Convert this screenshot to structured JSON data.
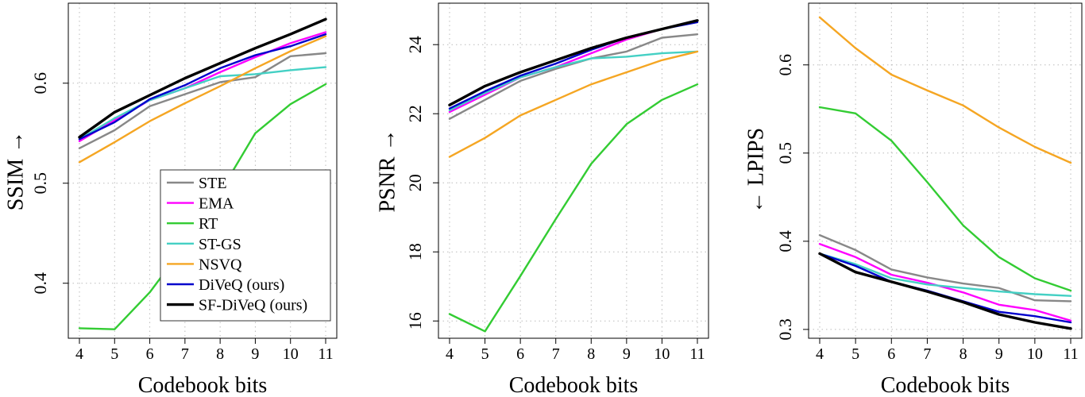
{
  "chart_data": [
    {
      "type": "line",
      "xlabel": "Codebook bits",
      "ylabel": "SSIM →",
      "xlim": [
        4,
        11
      ],
      "ylim": [
        0.345,
        0.68
      ],
      "xticks": [
        4,
        5,
        6,
        7,
        8,
        9,
        10,
        11
      ],
      "yticks": [
        0.4,
        0.5,
        0.6
      ],
      "ytick_labels": [
        "0.4",
        "0.5",
        "0.6"
      ],
      "grid": true,
      "legend_position": "lower-right",
      "x": [
        4,
        5,
        6,
        7,
        8,
        9,
        10,
        11
      ],
      "series": [
        {
          "name": "STE",
          "color": "#888888",
          "values": [
            0.535,
            0.553,
            0.577,
            0.589,
            0.601,
            0.606,
            0.627,
            0.63
          ]
        },
        {
          "name": "EMA",
          "color": "#ff00ff",
          "values": [
            0.542,
            0.563,
            0.583,
            0.595,
            0.611,
            0.626,
            0.64,
            0.651
          ]
        },
        {
          "name": "RT",
          "color": "#33cc33",
          "values": [
            0.355,
            0.354,
            0.391,
            0.438,
            0.491,
            0.55,
            0.579,
            0.599
          ]
        },
        {
          "name": "ST-GS",
          "color": "#44d0c4",
          "values": [
            0.544,
            0.565,
            0.583,
            0.595,
            0.607,
            0.609,
            0.613,
            0.616
          ]
        },
        {
          "name": "NSVQ",
          "color": "#f5a623",
          "values": [
            0.521,
            0.541,
            0.562,
            0.58,
            0.597,
            0.615,
            0.632,
            0.647
          ]
        },
        {
          "name": "DiVeQ (ours)",
          "color": "#0000cc",
          "values": [
            0.544,
            0.561,
            0.584,
            0.598,
            0.615,
            0.628,
            0.637,
            0.649
          ]
        },
        {
          "name": "SF-DiVeQ (ours)",
          "color": "#000000",
          "values": [
            0.546,
            0.571,
            0.588,
            0.605,
            0.62,
            0.635,
            0.649,
            0.664
          ]
        }
      ]
    },
    {
      "type": "line",
      "xlabel": "Codebook bits",
      "ylabel": "PSNR →",
      "xlim": [
        4,
        11
      ],
      "ylim": [
        15.5,
        25.2
      ],
      "xticks": [
        4,
        5,
        6,
        7,
        8,
        9,
        10,
        11
      ],
      "yticks": [
        16,
        18,
        20,
        22,
        24
      ],
      "ytick_labels": [
        "16",
        "18",
        "20",
        "22",
        "24"
      ],
      "grid": true,
      "x": [
        4,
        5,
        6,
        7,
        8,
        9,
        10,
        11
      ],
      "series": [
        {
          "color": "#888888",
          "values": [
            21.85,
            22.4,
            22.95,
            23.3,
            23.6,
            23.8,
            24.2,
            24.3
          ]
        },
        {
          "color": "#ff00ff",
          "values": [
            22.05,
            22.55,
            23.05,
            23.35,
            23.75,
            24.15,
            24.45,
            24.7
          ]
        },
        {
          "color": "#33cc33",
          "values": [
            16.2,
            15.7,
            17.3,
            18.95,
            20.55,
            21.7,
            22.4,
            22.85
          ]
        },
        {
          "color": "#44d0c4",
          "values": [
            22.1,
            22.6,
            23.05,
            23.35,
            23.6,
            23.65,
            23.75,
            23.8
          ]
        },
        {
          "color": "#f5a623",
          "values": [
            20.75,
            21.3,
            21.95,
            22.4,
            22.85,
            23.2,
            23.55,
            23.8
          ]
        },
        {
          "color": "#0000cc",
          "values": [
            22.15,
            22.65,
            23.1,
            23.45,
            23.85,
            24.2,
            24.45,
            24.65
          ]
        },
        {
          "color": "#000000",
          "values": [
            22.25,
            22.8,
            23.2,
            23.55,
            23.9,
            24.2,
            24.45,
            24.7
          ]
        }
      ]
    },
    {
      "type": "line",
      "xlabel": "Codebook bits",
      "ylabel": "← LPIPS",
      "xlim": [
        4,
        11
      ],
      "ylim": [
        0.29,
        0.67
      ],
      "xticks": [
        4,
        5,
        6,
        7,
        8,
        9,
        10,
        11
      ],
      "yticks": [
        0.3,
        0.4,
        0.5,
        0.6
      ],
      "ytick_labels": [
        "0.3",
        "0.4",
        "0.5",
        "0.6"
      ],
      "grid": true,
      "x": [
        4,
        5,
        6,
        7,
        8,
        9,
        10,
        11
      ],
      "series": [
        {
          "color": "#888888",
          "values": [
            0.407,
            0.39,
            0.368,
            0.359,
            0.352,
            0.347,
            0.333,
            0.332
          ]
        },
        {
          "color": "#ff00ff",
          "values": [
            0.397,
            0.382,
            0.362,
            0.353,
            0.342,
            0.328,
            0.322,
            0.31
          ]
        },
        {
          "color": "#33cc33",
          "values": [
            0.552,
            0.545,
            0.514,
            0.467,
            0.418,
            0.382,
            0.358,
            0.344
          ]
        },
        {
          "color": "#44d0c4",
          "values": [
            0.386,
            0.374,
            0.358,
            0.351,
            0.347,
            0.343,
            0.34,
            0.338
          ]
        },
        {
          "color": "#f5a623",
          "values": [
            0.654,
            0.619,
            0.589,
            0.571,
            0.554,
            0.529,
            0.507,
            0.489
          ]
        },
        {
          "color": "#0000cc",
          "values": [
            0.386,
            0.372,
            0.354,
            0.344,
            0.332,
            0.32,
            0.315,
            0.308
          ]
        },
        {
          "color": "#000000",
          "values": [
            0.386,
            0.365,
            0.354,
            0.343,
            0.331,
            0.317,
            0.308,
            0.301
          ]
        }
      ]
    }
  ]
}
